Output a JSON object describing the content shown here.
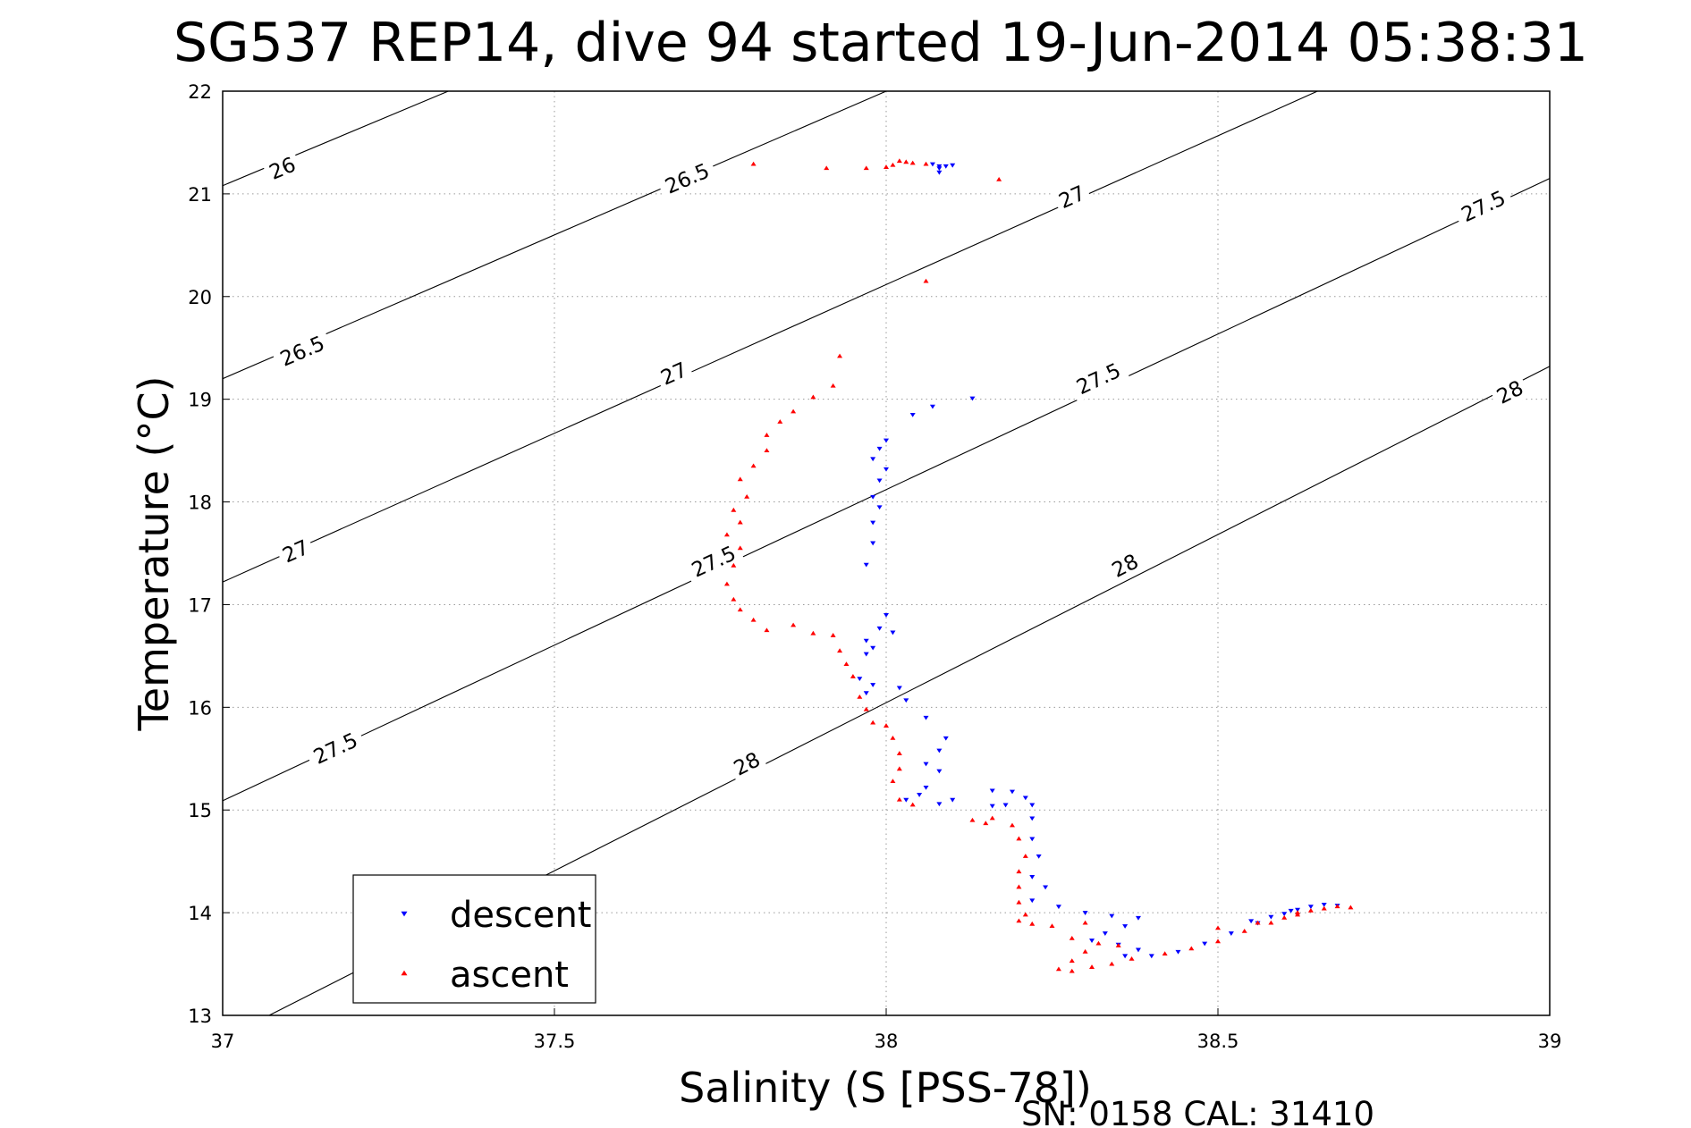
{
  "chart_data": {
    "type": "scatter",
    "title": "SG537 REP14, dive 94 started 19-Jun-2014 05:38:31",
    "xlabel": "Salinity (S [PSS-78])",
    "ylabel": "Temperature (°C)",
    "xlim": [
      37,
      39
    ],
    "ylim": [
      13,
      22
    ],
    "xticks": [
      "37",
      "37.5",
      "38",
      "38.5",
      "39"
    ],
    "yticks": [
      "13",
      "14",
      "15",
      "16",
      "17",
      "18",
      "19",
      "20",
      "21",
      "22"
    ],
    "grid": true,
    "legend_position": "bottom-left",
    "footer": "SN: 0158  CAL: 31410",
    "contours": [
      {
        "level": "26",
        "start": [
          37.0,
          21.08
        ],
        "end": [
          37.34,
          22.0
        ],
        "label_points": [
          [
            37.09,
            21.25
          ]
        ]
      },
      {
        "level": "26.5",
        "start": [
          37.0,
          19.2
        ],
        "end": [
          38.0,
          22.0
        ],
        "label_points": [
          [
            37.12,
            19.47
          ],
          [
            37.7,
            21.15
          ]
        ]
      },
      {
        "level": "27",
        "start": [
          37.0,
          17.22
        ],
        "end": [
          38.65,
          22.0
        ],
        "label_points": [
          [
            37.11,
            17.52
          ],
          [
            37.68,
            19.25
          ],
          [
            38.28,
            20.97
          ]
        ]
      },
      {
        "level": "27.5",
        "start": [
          37.0,
          15.09
        ],
        "end": [
          39.0,
          21.15
        ],
        "label_points": [
          [
            37.17,
            15.6
          ],
          [
            37.74,
            17.42
          ],
          [
            38.32,
            19.2
          ],
          [
            38.9,
            20.88
          ]
        ]
      },
      {
        "level": "28",
        "start": [
          37.07,
          13.0
        ],
        "end": [
          39.0,
          19.32
        ],
        "label_points": [
          [
            37.79,
            15.45
          ],
          [
            38.36,
            17.38
          ],
          [
            38.94,
            19.07
          ]
        ]
      }
    ],
    "series": [
      {
        "name": "descent",
        "color": "#0000ff",
        "marker": "triangle-down",
        "points": [
          [
            38.07,
            21.29
          ],
          [
            38.08,
            21.27
          ],
          [
            38.08,
            21.25
          ],
          [
            38.09,
            21.27
          ],
          [
            38.1,
            21.28
          ],
          [
            38.08,
            21.21
          ],
          [
            38.13,
            19.01
          ],
          [
            38.07,
            18.93
          ],
          [
            38.04,
            18.85
          ],
          [
            38.0,
            18.6
          ],
          [
            37.99,
            18.52
          ],
          [
            37.98,
            18.42
          ],
          [
            38.0,
            18.32
          ],
          [
            37.99,
            18.21
          ],
          [
            37.98,
            18.05
          ],
          [
            37.99,
            17.95
          ],
          [
            37.98,
            17.8
          ],
          [
            37.98,
            17.6
          ],
          [
            37.97,
            17.39
          ],
          [
            38.0,
            16.9
          ],
          [
            37.99,
            16.77
          ],
          [
            37.97,
            16.65
          ],
          [
            37.97,
            16.52
          ],
          [
            37.98,
            16.58
          ],
          [
            38.01,
            16.73
          ],
          [
            37.96,
            16.28
          ],
          [
            37.98,
            16.22
          ],
          [
            37.97,
            16.14
          ],
          [
            38.02,
            16.19
          ],
          [
            38.03,
            16.07
          ],
          [
            38.06,
            15.9
          ],
          [
            38.09,
            15.7
          ],
          [
            38.08,
            15.58
          ],
          [
            38.06,
            15.45
          ],
          [
            38.08,
            15.38
          ],
          [
            38.06,
            15.22
          ],
          [
            38.05,
            15.15
          ],
          [
            38.03,
            15.1
          ],
          [
            38.08,
            15.06
          ],
          [
            38.1,
            15.1
          ],
          [
            38.16,
            15.04
          ],
          [
            38.18,
            15.05
          ],
          [
            38.16,
            15.19
          ],
          [
            38.19,
            15.18
          ],
          [
            38.21,
            15.12
          ],
          [
            38.22,
            15.05
          ],
          [
            38.22,
            14.92
          ],
          [
            38.22,
            14.72
          ],
          [
            38.23,
            14.55
          ],
          [
            38.22,
            14.35
          ],
          [
            38.24,
            14.25
          ],
          [
            38.22,
            14.12
          ],
          [
            38.26,
            14.06
          ],
          [
            38.3,
            14.0
          ],
          [
            38.34,
            13.97
          ],
          [
            38.38,
            13.95
          ],
          [
            38.36,
            13.87
          ],
          [
            38.33,
            13.8
          ],
          [
            38.31,
            13.73
          ],
          [
            38.35,
            13.69
          ],
          [
            38.38,
            13.64
          ],
          [
            38.36,
            13.58
          ],
          [
            38.4,
            13.58
          ],
          [
            38.44,
            13.62
          ],
          [
            38.48,
            13.7
          ],
          [
            38.52,
            13.8
          ],
          [
            38.56,
            13.9
          ],
          [
            38.6,
            13.99
          ],
          [
            38.62,
            14.03
          ],
          [
            38.64,
            14.06
          ],
          [
            38.66,
            14.08
          ],
          [
            38.68,
            14.07
          ],
          [
            38.58,
            13.96
          ],
          [
            38.61,
            14.02
          ],
          [
            38.55,
            13.92
          ]
        ]
      },
      {
        "name": "ascent",
        "color": "#ff0000",
        "marker": "triangle-up",
        "points": [
          [
            37.8,
            21.29
          ],
          [
            37.91,
            21.25
          ],
          [
            37.97,
            21.25
          ],
          [
            38.0,
            21.26
          ],
          [
            38.01,
            21.28
          ],
          [
            38.02,
            21.32
          ],
          [
            38.03,
            21.31
          ],
          [
            38.04,
            21.3
          ],
          [
            38.06,
            21.29
          ],
          [
            38.17,
            21.14
          ],
          [
            38.06,
            20.15
          ],
          [
            37.93,
            19.42
          ],
          [
            37.92,
            19.13
          ],
          [
            37.89,
            19.02
          ],
          [
            37.86,
            18.88
          ],
          [
            37.84,
            18.78
          ],
          [
            37.82,
            18.65
          ],
          [
            37.82,
            18.5
          ],
          [
            37.8,
            18.35
          ],
          [
            37.78,
            18.22
          ],
          [
            37.79,
            18.05
          ],
          [
            37.77,
            17.92
          ],
          [
            37.78,
            17.8
          ],
          [
            37.76,
            17.68
          ],
          [
            37.78,
            17.55
          ],
          [
            37.77,
            17.38
          ],
          [
            37.76,
            17.2
          ],
          [
            37.77,
            17.05
          ],
          [
            37.78,
            16.95
          ],
          [
            37.8,
            16.85
          ],
          [
            37.82,
            16.75
          ],
          [
            37.86,
            16.8
          ],
          [
            37.89,
            16.72
          ],
          [
            37.92,
            16.7
          ],
          [
            37.93,
            16.55
          ],
          [
            37.94,
            16.42
          ],
          [
            37.95,
            16.3
          ],
          [
            37.96,
            16.1
          ],
          [
            37.97,
            15.98
          ],
          [
            37.98,
            15.85
          ],
          [
            38.0,
            15.82
          ],
          [
            38.01,
            15.7
          ],
          [
            38.02,
            15.55
          ],
          [
            38.02,
            15.4
          ],
          [
            38.01,
            15.28
          ],
          [
            38.02,
            15.1
          ],
          [
            38.04,
            15.05
          ],
          [
            38.13,
            14.9
          ],
          [
            38.15,
            14.87
          ],
          [
            38.16,
            14.92
          ],
          [
            38.19,
            14.85
          ],
          [
            38.2,
            14.72
          ],
          [
            38.21,
            14.55
          ],
          [
            38.2,
            14.4
          ],
          [
            38.2,
            14.25
          ],
          [
            38.2,
            14.1
          ],
          [
            38.21,
            13.98
          ],
          [
            38.2,
            13.92
          ],
          [
            38.22,
            13.89
          ],
          [
            38.25,
            13.87
          ],
          [
            38.3,
            13.9
          ],
          [
            38.28,
            13.75
          ],
          [
            38.32,
            13.7
          ],
          [
            38.35,
            13.68
          ],
          [
            38.3,
            13.62
          ],
          [
            38.28,
            13.53
          ],
          [
            38.26,
            13.45
          ],
          [
            38.28,
            13.43
          ],
          [
            38.31,
            13.47
          ],
          [
            38.34,
            13.5
          ],
          [
            38.37,
            13.55
          ],
          [
            38.42,
            13.6
          ],
          [
            38.46,
            13.65
          ],
          [
            38.5,
            13.72
          ],
          [
            38.54,
            13.82
          ],
          [
            38.58,
            13.9
          ],
          [
            38.62,
            13.98
          ],
          [
            38.66,
            14.04
          ],
          [
            38.68,
            14.06
          ],
          [
            38.7,
            14.05
          ],
          [
            38.64,
            14.02
          ],
          [
            38.6,
            13.95
          ],
          [
            38.56,
            13.9
          ],
          [
            38.5,
            13.85
          ],
          [
            38.62,
            14.0
          ]
        ]
      }
    ]
  }
}
